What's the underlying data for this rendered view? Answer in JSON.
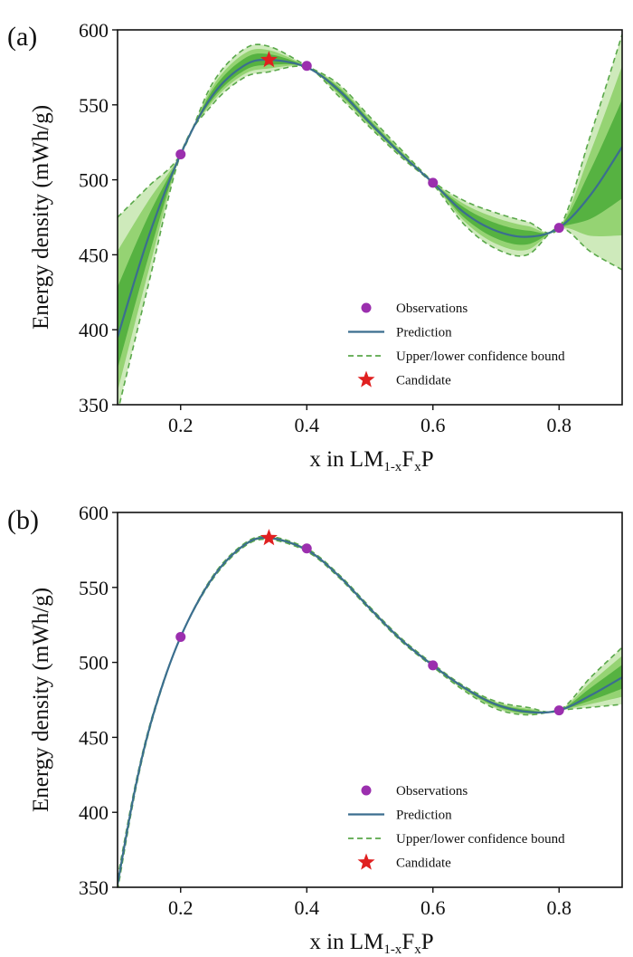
{
  "chart_data": [
    {
      "panel_label": "(a)",
      "type": "line",
      "xlabel": {
        "prefix": "x in LM",
        "sub1": "1-x",
        "mid": "F",
        "sub2": "x",
        "suffix": "P"
      },
      "ylabel": "Energy density (mWh/g)",
      "xlim": [
        0.1,
        0.9
      ],
      "ylim": [
        350,
        600
      ],
      "xticks": [
        0.2,
        0.4,
        0.6,
        0.8
      ],
      "xtick_labels": [
        "0.2",
        "0.4",
        "0.6",
        "0.8"
      ],
      "yticks": [
        350,
        400,
        450,
        500,
        550,
        600
      ],
      "ytick_labels": [
        "350",
        "400",
        "450",
        "500",
        "550",
        "600"
      ],
      "legend_position": "lower-right",
      "legend": [
        "Observations",
        "Prediction",
        "Upper/lower confidence bound",
        "Candidate"
      ],
      "prediction": {
        "x": [
          0.1,
          0.15,
          0.2,
          0.25,
          0.3,
          0.34,
          0.4,
          0.45,
          0.5,
          0.55,
          0.6,
          0.65,
          0.7,
          0.75,
          0.8,
          0.85,
          0.9
        ],
        "y": [
          395,
          463,
          517,
          556,
          576,
          580,
          575,
          560,
          538,
          517,
          498,
          478,
          466,
          462,
          468,
          490,
          522
        ]
      },
      "upper_bound": {
        "x": [
          0.1,
          0.15,
          0.2,
          0.25,
          0.3,
          0.34,
          0.4,
          0.45,
          0.5,
          0.55,
          0.6,
          0.65,
          0.7,
          0.75,
          0.8,
          0.85,
          0.9
        ],
        "y": [
          475,
          496,
          517,
          564,
          587,
          589,
          576,
          564,
          542,
          520,
          499,
          486,
          478,
          472,
          468,
          530,
          597
        ]
      },
      "lower_bound": {
        "x": [
          0.1,
          0.15,
          0.2,
          0.25,
          0.3,
          0.34,
          0.4,
          0.45,
          0.5,
          0.55,
          0.6,
          0.65,
          0.7,
          0.75,
          0.8,
          0.85,
          0.9
        ],
        "y": [
          345,
          432,
          517,
          550,
          568,
          572,
          575,
          556,
          535,
          515,
          497,
          470,
          454,
          450,
          468,
          452,
          440
        ]
      },
      "observations": {
        "x": [
          0.2,
          0.4,
          0.6,
          0.8
        ],
        "y": [
          517,
          576,
          498,
          468
        ]
      },
      "candidate": {
        "x": 0.34,
        "y": 580
      }
    },
    {
      "panel_label": "(b)",
      "type": "line",
      "xlabel": {
        "prefix": "x in LM",
        "sub1": "1-x",
        "mid": "F",
        "sub2": "x",
        "suffix": "P"
      },
      "ylabel": "Energy density (mWh/g)",
      "xlim": [
        0.1,
        0.9
      ],
      "ylim": [
        350,
        600
      ],
      "xticks": [
        0.2,
        0.4,
        0.6,
        0.8
      ],
      "xtick_labels": [
        "0.2",
        "0.4",
        "0.6",
        "0.8"
      ],
      "yticks": [
        350,
        400,
        450,
        500,
        550,
        600
      ],
      "ytick_labels": [
        "350",
        "400",
        "450",
        "500",
        "550",
        "600"
      ],
      "legend_position": "lower-right",
      "legend": [
        "Observations",
        "Prediction",
        "Upper/lower confidence bound",
        "Candidate"
      ],
      "prediction": {
        "x": [
          0.1,
          0.13,
          0.16,
          0.2,
          0.25,
          0.3,
          0.34,
          0.4,
          0.45,
          0.5,
          0.55,
          0.6,
          0.65,
          0.7,
          0.75,
          0.8,
          0.85,
          0.9
        ],
        "y": [
          352,
          420,
          470,
          517,
          556,
          578,
          583,
          575,
          558,
          536,
          515,
          498,
          483,
          472,
          467,
          468,
          478,
          490
        ]
      },
      "upper_bound": {
        "x": [
          0.1,
          0.13,
          0.16,
          0.2,
          0.25,
          0.3,
          0.34,
          0.4,
          0.45,
          0.5,
          0.55,
          0.6,
          0.65,
          0.7,
          0.75,
          0.8,
          0.85,
          0.9
        ],
        "y": [
          356,
          422,
          471,
          517,
          557,
          579,
          584,
          576,
          559,
          537,
          516,
          499,
          484,
          474,
          470,
          468,
          490,
          510
        ]
      },
      "lower_bound": {
        "x": [
          0.1,
          0.13,
          0.16,
          0.2,
          0.25,
          0.3,
          0.34,
          0.4,
          0.45,
          0.5,
          0.55,
          0.6,
          0.65,
          0.7,
          0.75,
          0.8,
          0.85,
          0.9
        ],
        "y": [
          348,
          418,
          469,
          517,
          555,
          577,
          582,
          574,
          557,
          535,
          514,
          497,
          481,
          469,
          465,
          468,
          470,
          472
        ]
      },
      "observations": {
        "x": [
          0.2,
          0.4,
          0.6,
          0.8
        ],
        "y": [
          517,
          576,
          498,
          468
        ]
      },
      "candidate": {
        "x": 0.34,
        "y": 583
      }
    }
  ],
  "colors": {
    "prediction": "#3b6e8f",
    "bound": "#5aa84a",
    "band_outer": "#c9e8b4",
    "band_mid": "#8fd06c",
    "band_inner": "#4fae3c",
    "observation": "#9b2fae",
    "candidate": "#e02020"
  }
}
